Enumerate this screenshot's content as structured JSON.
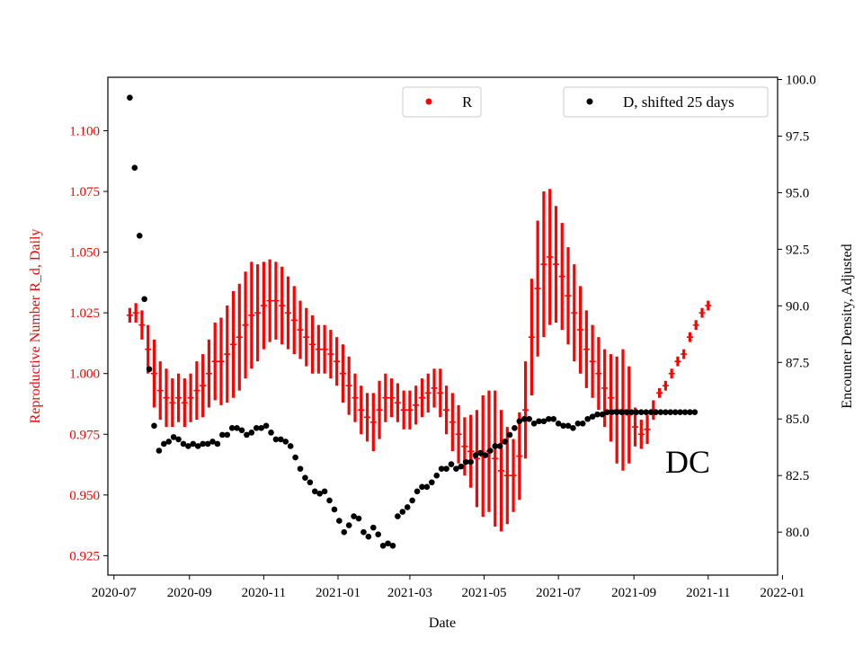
{
  "chart_data": {
    "type": "scatter",
    "xlabel": "Date",
    "ylabel_left": "Reproductive Number R_d, Daily",
    "ylabel_right": "Encounter Density, Adjusted",
    "annotation": "DC",
    "left_axis": {
      "color": "#ff0000",
      "ylim": [
        0.917,
        1.122
      ],
      "ticks": [
        "0.925",
        "0.950",
        "0.975",
        "1.000",
        "1.025",
        "1.050",
        "1.075",
        "1.100"
      ]
    },
    "right_axis": {
      "color": "#000000",
      "ylim": [
        78.1,
        100.1
      ],
      "ticks": [
        "80.0",
        "82.5",
        "85.0",
        "87.5",
        "90.0",
        "92.5",
        "95.0",
        "97.5",
        "100.0"
      ]
    },
    "x_axis": {
      "start": "2020-06-26",
      "end": "2021-12-28",
      "ticks": [
        "2020-07",
        "2020-09",
        "2020-11",
        "2021-01",
        "2021-03",
        "2021-05",
        "2021-07",
        "2021-09",
        "2021-11",
        "2022-01"
      ],
      "tick_dates": [
        "2020-07-01",
        "2020-09-01",
        "2020-11-01",
        "2021-01-01",
        "2021-03-01",
        "2021-05-01",
        "2021-07-01",
        "2021-09-01",
        "2021-11-01",
        "2022-01-01"
      ]
    },
    "legend": [
      {
        "label": "R",
        "color": "#ff0000",
        "placement": "top-center"
      },
      {
        "label": "D, shifted 25 days",
        "color": "#000000",
        "placement": "top-right"
      }
    ],
    "series": [
      {
        "name": "R",
        "axis": "left",
        "color": "#ff0000",
        "marker": "+",
        "date_start": "2020-07-14",
        "step_days": 5,
        "values": [
          1.024,
          1.025,
          1.02,
          1.01,
          1.0,
          0.993,
          0.99,
          0.988,
          0.99,
          0.988,
          0.99,
          0.993,
          0.995,
          1.0,
          1.005,
          1.005,
          1.008,
          1.012,
          1.015,
          1.02,
          1.024,
          1.025,
          1.028,
          1.03,
          1.03,
          1.028,
          1.025,
          1.022,
          1.018,
          1.015,
          1.012,
          1.01,
          1.01,
          1.008,
          1.005,
          1.0,
          0.995,
          0.99,
          0.985,
          0.982,
          0.98,
          0.985,
          0.99,
          0.99,
          0.988,
          0.985,
          0.985,
          0.987,
          0.99,
          0.992,
          0.994,
          0.992,
          0.985,
          0.98,
          0.975,
          0.97,
          0.968,
          0.965,
          0.966,
          0.968,
          0.965,
          0.96,
          0.958,
          0.958,
          0.966,
          0.985,
          1.015,
          1.035,
          1.045,
          1.048,
          1.045,
          1.04,
          1.032,
          1.025,
          1.018,
          1.01,
          1.005,
          1.0,
          0.994,
          0.99,
          0.985,
          0.985,
          0.983,
          0.978,
          0.975,
          0.977,
          0.985,
          0.992,
          0.995,
          1.0,
          1.005,
          1.008,
          1.015,
          1.02,
          1.025,
          1.028
        ],
        "spread": [
          0.003,
          0.004,
          0.006,
          0.01,
          0.014,
          0.012,
          0.012,
          0.01,
          0.01,
          0.01,
          0.01,
          0.012,
          0.013,
          0.014,
          0.016,
          0.018,
          0.02,
          0.022,
          0.022,
          0.022,
          0.022,
          0.02,
          0.018,
          0.017,
          0.016,
          0.016,
          0.015,
          0.014,
          0.012,
          0.012,
          0.012,
          0.01,
          0.01,
          0.01,
          0.01,
          0.012,
          0.012,
          0.01,
          0.01,
          0.01,
          0.012,
          0.012,
          0.01,
          0.008,
          0.008,
          0.008,
          0.008,
          0.008,
          0.008,
          0.008,
          0.008,
          0.01,
          0.01,
          0.012,
          0.012,
          0.012,
          0.015,
          0.02,
          0.025,
          0.025,
          0.028,
          0.025,
          0.02,
          0.015,
          0.018,
          0.02,
          0.024,
          0.028,
          0.03,
          0.028,
          0.024,
          0.022,
          0.02,
          0.02,
          0.018,
          0.016,
          0.015,
          0.015,
          0.016,
          0.018,
          0.022,
          0.025,
          0.02,
          0.008,
          0.006,
          0.006,
          0.004,
          0.002,
          0.002,
          0.002,
          0.002,
          0.002,
          0.002,
          0.002,
          0.002,
          0.002
        ]
      },
      {
        "name": "D, shifted 25 days",
        "axis": "right",
        "color": "#000000",
        "marker": "o",
        "date_start": "2020-07-14",
        "step_days": 4,
        "values": [
          99.2,
          96.1,
          93.1,
          90.3,
          87.2,
          84.7,
          83.6,
          83.9,
          84.0,
          84.2,
          84.1,
          83.9,
          83.8,
          83.9,
          83.8,
          83.9,
          83.9,
          84.0,
          83.9,
          84.3,
          84.3,
          84.6,
          84.6,
          84.5,
          84.3,
          84.4,
          84.6,
          84.6,
          84.7,
          84.4,
          84.1,
          84.1,
          84.0,
          83.8,
          83.3,
          82.8,
          82.4,
          82.2,
          81.8,
          81.7,
          81.8,
          81.4,
          81.0,
          80.5,
          80.0,
          80.3,
          80.7,
          80.6,
          80.0,
          79.8,
          80.2,
          79.9,
          79.4,
          79.5,
          79.4,
          80.7,
          80.9,
          81.1,
          81.4,
          81.8,
          82.0,
          82.0,
          82.2,
          82.5,
          82.8,
          82.8,
          83.0,
          82.8,
          82.9,
          83.1,
          83.1,
          83.4,
          83.5,
          83.4,
          83.6,
          83.8,
          83.8,
          84.0,
          84.3,
          84.6,
          84.9,
          85.0,
          85.0,
          84.8,
          84.9,
          84.9,
          85.0,
          85.0,
          84.8,
          84.7,
          84.7,
          84.6,
          84.8,
          84.8,
          85.0,
          85.1,
          85.2,
          85.2,
          85.3,
          85.3,
          85.3,
          85.3,
          85.3,
          85.3,
          85.3,
          85.3,
          85.3,
          85.3,
          85.3,
          85.3,
          85.3,
          85.3,
          85.3,
          85.3,
          85.3,
          85.3,
          85.3
        ]
      }
    ]
  }
}
